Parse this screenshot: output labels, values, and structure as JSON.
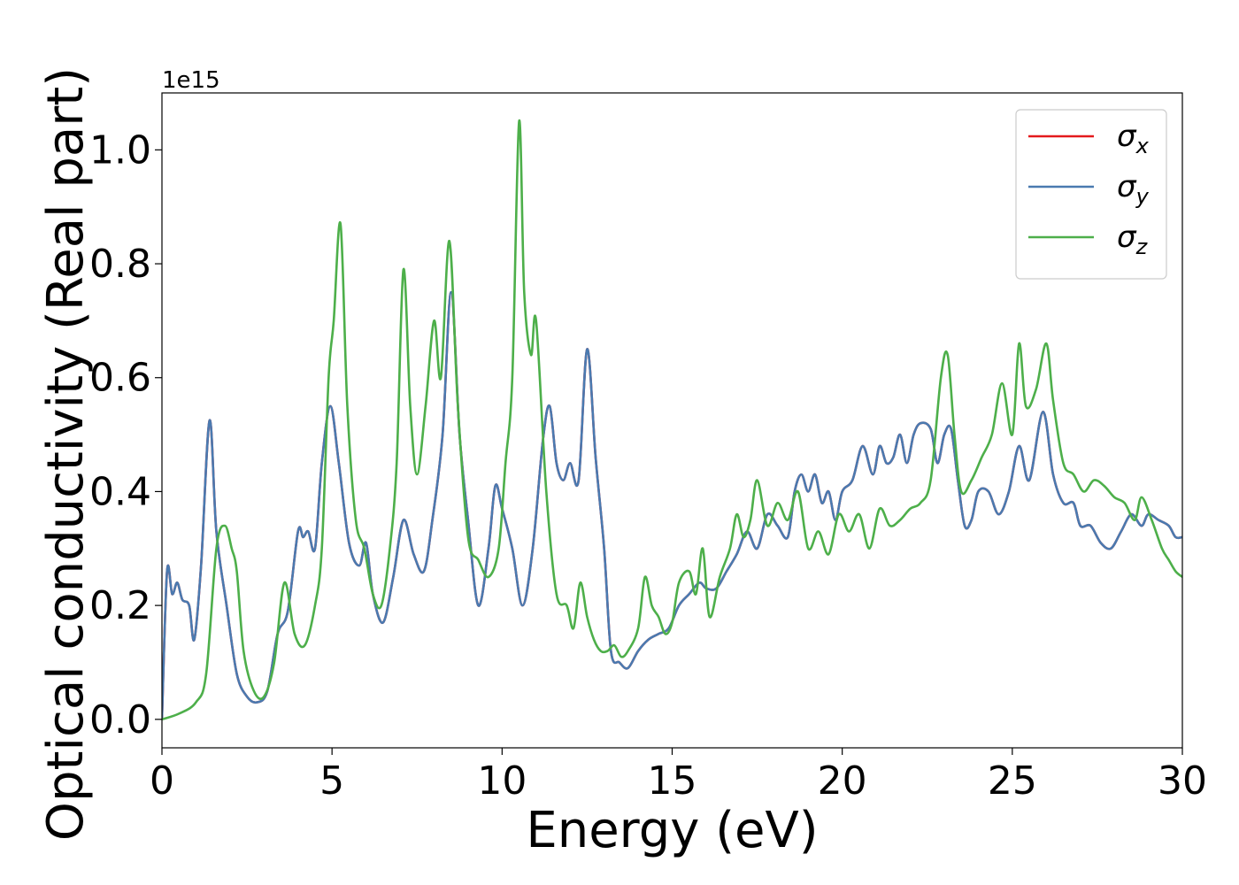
{
  "chart_data": {
    "type": "line",
    "xlabel": "Energy (eV)",
    "ylabel": "Optical conductivity (Real part)",
    "y_offset_label": "1e15",
    "xlim": [
      0,
      30
    ],
    "ylim": [
      -0.05,
      1.1
    ],
    "xticks": [
      {
        "value": 0,
        "label": "0"
      },
      {
        "value": 5,
        "label": "5"
      },
      {
        "value": 10,
        "label": "10"
      },
      {
        "value": 15,
        "label": "15"
      },
      {
        "value": 20,
        "label": "20"
      },
      {
        "value": 25,
        "label": "25"
      },
      {
        "value": 30,
        "label": "30"
      }
    ],
    "yticks": [
      {
        "value": 0.0,
        "label": "0.0"
      },
      {
        "value": 0.2,
        "label": "0.2"
      },
      {
        "value": 0.4,
        "label": "0.4"
      },
      {
        "value": 0.6,
        "label": "0.6"
      },
      {
        "value": 0.8,
        "label": "0.8"
      },
      {
        "value": 1.0,
        "label": "1.0"
      }
    ],
    "grid": false,
    "legend_position": "top-right",
    "series": [
      {
        "name": "σx",
        "symbol": "σ",
        "subscript": "x",
        "color": "#e41a1c",
        "x": [
          0,
          0.15,
          0.3,
          0.45,
          0.6,
          0.8,
          0.95,
          1.15,
          1.4,
          1.6,
          1.9,
          2.2,
          2.5,
          2.8,
          3.1,
          3.4,
          3.7,
          4.0,
          4.15,
          4.3,
          4.5,
          4.7,
          4.95,
          5.2,
          5.5,
          5.8,
          6.0,
          6.2,
          6.5,
          6.8,
          7.1,
          7.4,
          7.7,
          7.95,
          8.25,
          8.5,
          8.75,
          9.0,
          9.3,
          9.6,
          9.8,
          10.0,
          10.3,
          10.6,
          10.9,
          11.2,
          11.4,
          11.6,
          11.8,
          12.0,
          12.25,
          12.5,
          12.75,
          13.0,
          13.2,
          13.45,
          13.7,
          14.0,
          14.3,
          14.6,
          14.9,
          15.2,
          15.5,
          15.8,
          16.0,
          16.3,
          16.6,
          16.9,
          17.2,
          17.5,
          17.8,
          18.1,
          18.4,
          18.6,
          18.8,
          19.0,
          19.2,
          19.4,
          19.6,
          19.8,
          20.0,
          20.3,
          20.6,
          20.9,
          21.1,
          21.3,
          21.5,
          21.7,
          21.9,
          22.1,
          22.3,
          22.6,
          22.8,
          23.0,
          23.2,
          23.4,
          23.6,
          23.8,
          24.0,
          24.3,
          24.6,
          24.9,
          25.2,
          25.5,
          25.9,
          26.2,
          26.5,
          26.8,
          27.0,
          27.3,
          27.6,
          27.9,
          28.2,
          28.5,
          28.8,
          29.0,
          29.3,
          29.6,
          29.8,
          30
        ],
        "y": [
          0,
          0.26,
          0.22,
          0.24,
          0.21,
          0.2,
          0.14,
          0.27,
          0.525,
          0.33,
          0.2,
          0.08,
          0.04,
          0.03,
          0.05,
          0.15,
          0.19,
          0.33,
          0.32,
          0.33,
          0.3,
          0.45,
          0.55,
          0.45,
          0.31,
          0.27,
          0.31,
          0.22,
          0.17,
          0.25,
          0.35,
          0.29,
          0.26,
          0.35,
          0.5,
          0.75,
          0.5,
          0.35,
          0.2,
          0.3,
          0.41,
          0.37,
          0.3,
          0.2,
          0.3,
          0.49,
          0.55,
          0.45,
          0.42,
          0.45,
          0.42,
          0.65,
          0.46,
          0.3,
          0.12,
          0.1,
          0.09,
          0.12,
          0.14,
          0.15,
          0.16,
          0.2,
          0.22,
          0.24,
          0.23,
          0.23,
          0.26,
          0.29,
          0.33,
          0.3,
          0.36,
          0.34,
          0.32,
          0.4,
          0.43,
          0.4,
          0.43,
          0.38,
          0.4,
          0.35,
          0.4,
          0.42,
          0.48,
          0.43,
          0.48,
          0.45,
          0.46,
          0.5,
          0.45,
          0.5,
          0.52,
          0.51,
          0.45,
          0.5,
          0.51,
          0.42,
          0.34,
          0.35,
          0.4,
          0.4,
          0.36,
          0.4,
          0.48,
          0.42,
          0.54,
          0.43,
          0.38,
          0.38,
          0.34,
          0.34,
          0.31,
          0.3,
          0.33,
          0.36,
          0.34,
          0.36,
          0.35,
          0.34,
          0.32,
          0.32
        ]
      },
      {
        "name": "σy",
        "symbol": "σ",
        "subscript": "y",
        "color": "#4a7ab0",
        "x": [
          0,
          0.15,
          0.3,
          0.45,
          0.6,
          0.8,
          0.95,
          1.15,
          1.4,
          1.6,
          1.9,
          2.2,
          2.5,
          2.8,
          3.1,
          3.4,
          3.7,
          4.0,
          4.15,
          4.3,
          4.5,
          4.7,
          4.95,
          5.2,
          5.5,
          5.8,
          6.0,
          6.2,
          6.5,
          6.8,
          7.1,
          7.4,
          7.7,
          7.95,
          8.25,
          8.5,
          8.75,
          9.0,
          9.3,
          9.6,
          9.8,
          10.0,
          10.3,
          10.6,
          10.9,
          11.2,
          11.4,
          11.6,
          11.8,
          12.0,
          12.25,
          12.5,
          12.75,
          13.0,
          13.2,
          13.45,
          13.7,
          14.0,
          14.3,
          14.6,
          14.9,
          15.2,
          15.5,
          15.8,
          16.0,
          16.3,
          16.6,
          16.9,
          17.2,
          17.5,
          17.8,
          18.1,
          18.4,
          18.6,
          18.8,
          19.0,
          19.2,
          19.4,
          19.6,
          19.8,
          20.0,
          20.3,
          20.6,
          20.9,
          21.1,
          21.3,
          21.5,
          21.7,
          21.9,
          22.1,
          22.3,
          22.6,
          22.8,
          23.0,
          23.2,
          23.4,
          23.6,
          23.8,
          24.0,
          24.3,
          24.6,
          24.9,
          25.2,
          25.5,
          25.9,
          26.2,
          26.5,
          26.8,
          27.0,
          27.3,
          27.6,
          27.9,
          28.2,
          28.5,
          28.8,
          29.0,
          29.3,
          29.6,
          29.8,
          30
        ],
        "y": [
          0,
          0.26,
          0.22,
          0.24,
          0.21,
          0.2,
          0.14,
          0.27,
          0.525,
          0.33,
          0.2,
          0.08,
          0.04,
          0.03,
          0.05,
          0.15,
          0.19,
          0.33,
          0.32,
          0.33,
          0.3,
          0.45,
          0.55,
          0.45,
          0.31,
          0.27,
          0.31,
          0.22,
          0.17,
          0.25,
          0.35,
          0.29,
          0.26,
          0.35,
          0.5,
          0.75,
          0.5,
          0.35,
          0.2,
          0.3,
          0.41,
          0.37,
          0.3,
          0.2,
          0.3,
          0.49,
          0.55,
          0.45,
          0.42,
          0.45,
          0.42,
          0.65,
          0.46,
          0.3,
          0.12,
          0.1,
          0.09,
          0.12,
          0.14,
          0.15,
          0.16,
          0.2,
          0.22,
          0.24,
          0.23,
          0.23,
          0.26,
          0.29,
          0.33,
          0.3,
          0.36,
          0.34,
          0.32,
          0.4,
          0.43,
          0.4,
          0.43,
          0.38,
          0.4,
          0.35,
          0.4,
          0.42,
          0.48,
          0.43,
          0.48,
          0.45,
          0.46,
          0.5,
          0.45,
          0.5,
          0.52,
          0.51,
          0.45,
          0.5,
          0.51,
          0.42,
          0.34,
          0.35,
          0.4,
          0.4,
          0.36,
          0.4,
          0.48,
          0.42,
          0.54,
          0.43,
          0.38,
          0.38,
          0.34,
          0.34,
          0.31,
          0.3,
          0.33,
          0.36,
          0.34,
          0.36,
          0.35,
          0.34,
          0.32,
          0.32
        ]
      },
      {
        "name": "σz",
        "symbol": "σ",
        "subscript": "z",
        "color": "#4daf4a",
        "x": [
          0,
          0.5,
          1.0,
          1.3,
          1.6,
          1.85,
          2.05,
          2.2,
          2.4,
          2.7,
          3.0,
          3.3,
          3.6,
          3.9,
          4.2,
          4.5,
          4.7,
          4.9,
          5.05,
          5.25,
          5.45,
          5.7,
          5.95,
          6.2,
          6.45,
          6.7,
          6.9,
          7.1,
          7.3,
          7.5,
          7.75,
          8.0,
          8.2,
          8.45,
          8.7,
          9.0,
          9.3,
          9.6,
          9.9,
          10.1,
          10.3,
          10.5,
          10.65,
          10.85,
          11.0,
          11.3,
          11.6,
          11.9,
          12.1,
          12.3,
          12.5,
          12.7,
          12.9,
          13.1,
          13.3,
          13.5,
          13.7,
          14.0,
          14.2,
          14.4,
          14.6,
          14.8,
          15.0,
          15.2,
          15.5,
          15.7,
          15.9,
          16.1,
          16.4,
          16.7,
          16.9,
          17.1,
          17.3,
          17.5,
          17.8,
          18.1,
          18.4,
          18.7,
          19.0,
          19.3,
          19.6,
          19.9,
          20.2,
          20.5,
          20.8,
          21.1,
          21.4,
          21.7,
          22.0,
          22.3,
          22.6,
          22.9,
          23.1,
          23.3,
          23.5,
          23.8,
          24.1,
          24.4,
          24.7,
          25.0,
          25.2,
          25.4,
          25.7,
          26.0,
          26.2,
          26.5,
          26.8,
          27.1,
          27.4,
          27.7,
          28.0,
          28.3,
          28.6,
          28.8,
          29.1,
          29.4,
          29.6,
          29.8,
          30
        ],
        "y": [
          0,
          0.01,
          0.03,
          0.08,
          0.3,
          0.34,
          0.3,
          0.26,
          0.12,
          0.05,
          0.04,
          0.1,
          0.24,
          0.15,
          0.13,
          0.2,
          0.3,
          0.6,
          0.7,
          0.87,
          0.55,
          0.35,
          0.3,
          0.22,
          0.2,
          0.3,
          0.45,
          0.79,
          0.55,
          0.43,
          0.55,
          0.7,
          0.6,
          0.84,
          0.55,
          0.32,
          0.28,
          0.25,
          0.3,
          0.45,
          0.6,
          1.05,
          0.75,
          0.64,
          0.7,
          0.4,
          0.22,
          0.2,
          0.16,
          0.24,
          0.18,
          0.14,
          0.12,
          0.12,
          0.13,
          0.11,
          0.12,
          0.16,
          0.25,
          0.2,
          0.18,
          0.15,
          0.17,
          0.24,
          0.26,
          0.22,
          0.3,
          0.18,
          0.25,
          0.3,
          0.36,
          0.32,
          0.35,
          0.42,
          0.34,
          0.38,
          0.35,
          0.4,
          0.3,
          0.33,
          0.29,
          0.36,
          0.33,
          0.36,
          0.3,
          0.37,
          0.34,
          0.35,
          0.37,
          0.38,
          0.42,
          0.6,
          0.64,
          0.5,
          0.4,
          0.42,
          0.46,
          0.5,
          0.59,
          0.5,
          0.66,
          0.55,
          0.58,
          0.66,
          0.56,
          0.45,
          0.43,
          0.4,
          0.42,
          0.41,
          0.39,
          0.38,
          0.35,
          0.39,
          0.35,
          0.3,
          0.28,
          0.26,
          0.25
        ]
      }
    ]
  }
}
